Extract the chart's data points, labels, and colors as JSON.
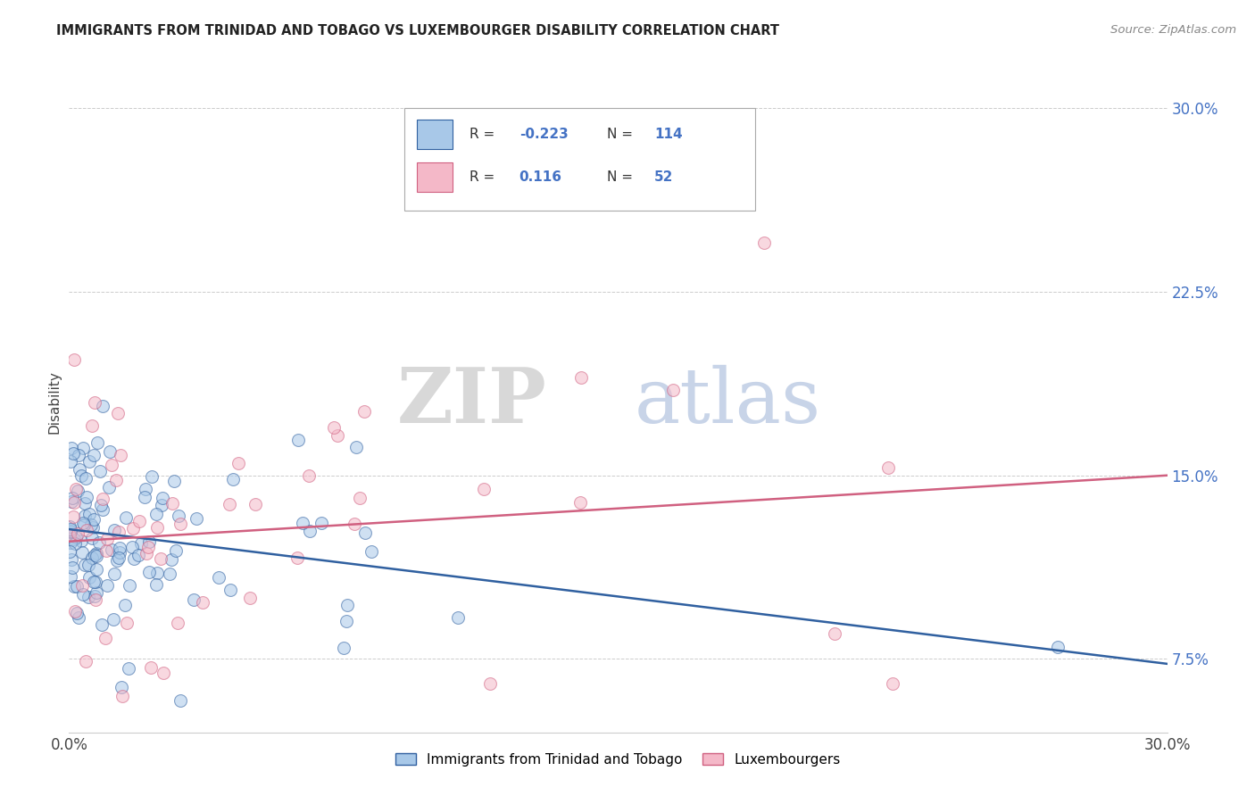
{
  "title": "IMMIGRANTS FROM TRINIDAD AND TOBAGO VS LUXEMBOURGER DISABILITY CORRELATION CHART",
  "source": "Source: ZipAtlas.com",
  "ylabel": "Disability",
  "xlim": [
    0.0,
    0.3
  ],
  "ylim": [
    0.045,
    0.315
  ],
  "yticks": [
    0.075,
    0.15,
    0.225,
    0.3
  ],
  "ytick_labels": [
    "7.5%",
    "15.0%",
    "22.5%",
    "30.0%"
  ],
  "xtick_labels": [
    "0.0%",
    "30.0%"
  ],
  "color_blue": "#a8c8e8",
  "color_pink": "#f4b8c8",
  "line_color_blue": "#3060a0",
  "line_color_pink": "#d06080",
  "blue_line_start_y": 0.128,
  "blue_line_end_y": 0.073,
  "pink_line_start_y": 0.123,
  "pink_line_end_y": 0.15
}
